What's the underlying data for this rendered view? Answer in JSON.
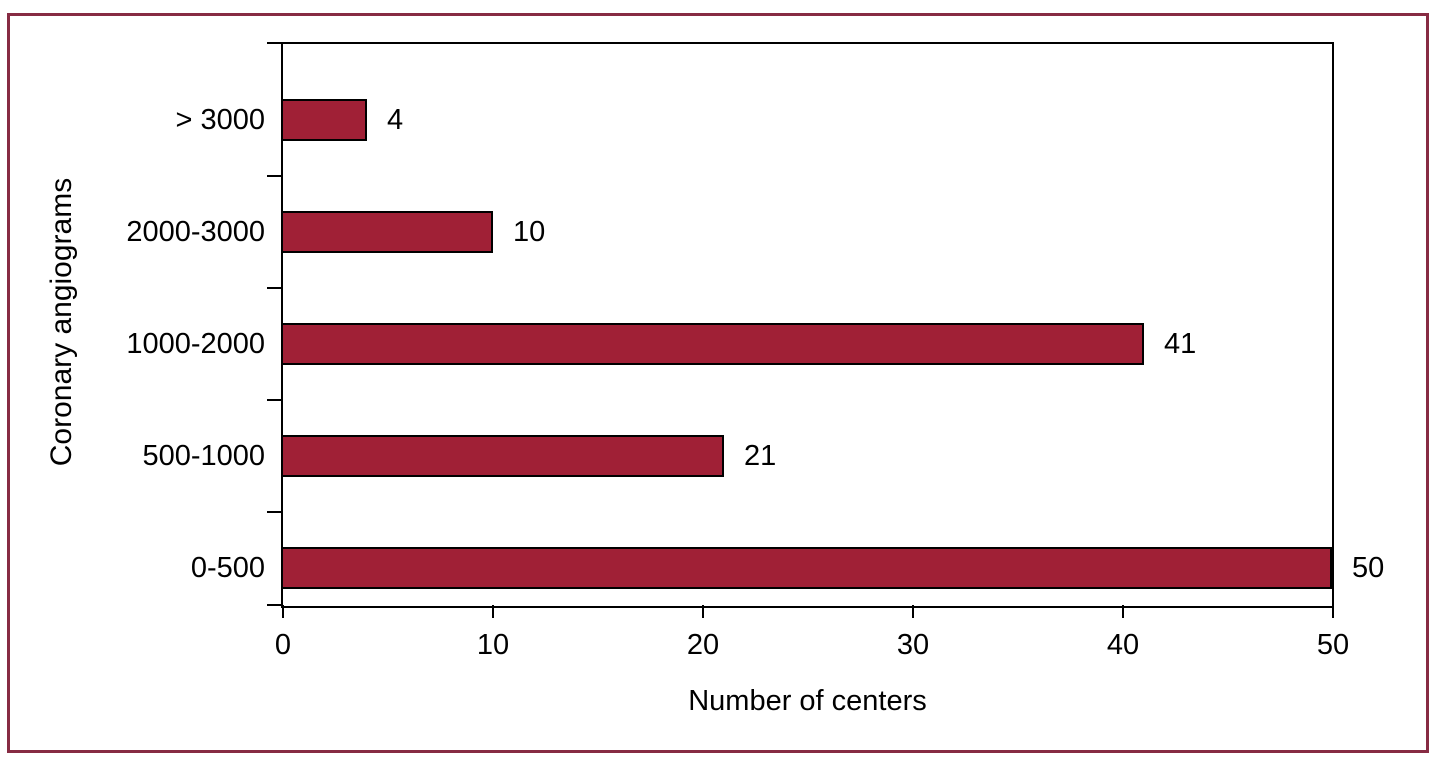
{
  "figure": {
    "frame_color": "#872B43",
    "background": "#FFFFFF"
  },
  "chart_data": {
    "type": "bar",
    "orientation": "horizontal",
    "title": "",
    "xlabel": "Number of centers",
    "ylabel": "Coronary angiograms",
    "categories": [
      "> 3000",
      "2000-3000",
      "1000-2000",
      "500-1000",
      "0-500"
    ],
    "values": [
      4,
      10,
      41,
      21,
      50
    ],
    "data_labels": [
      "4",
      "10",
      "41",
      "21",
      "50"
    ],
    "xlim": [
      0,
      50
    ],
    "x_ticks": [
      0,
      10,
      20,
      30,
      40,
      50
    ],
    "grid": false,
    "legend": false,
    "bar_color": "#A02036",
    "bar_border_color": "#000000",
    "axis_color": "#000000"
  }
}
